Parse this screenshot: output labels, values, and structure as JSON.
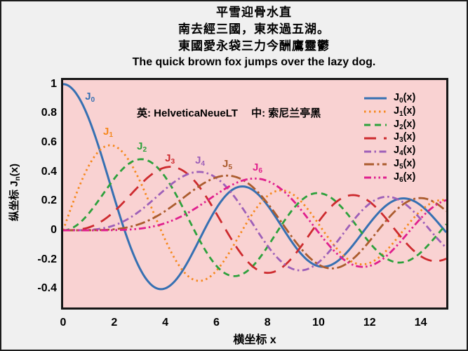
{
  "title_block": {
    "lines": [
      "平雪迎骨水直",
      "南去經三國，東來過五湖。",
      "東國愛永袋三力今酬鷹靈鬱",
      "The quick brown fox jumps over the lazy dog."
    ]
  },
  "annotation": {
    "text": "英: HelveticaNeueLT　 中: 索尼兰亭黑"
  },
  "chart_data": {
    "type": "line",
    "title": "平雪迎骨水直 / 南去經三國，東來過五湖。/ 東國愛永袋三力今酬鷹靈鬱 / The quick brown fox jumps over the lazy dog.",
    "xlabel": "横坐标 x",
    "ylabel_prefix": "纵坐标 J",
    "ylabel_sub": "n",
    "ylabel_suffix": "(x)",
    "xlim": [
      0,
      15
    ],
    "ylim": [
      -0.528,
      1.028
    ],
    "xticks": [
      0,
      2,
      4,
      6,
      8,
      10,
      12,
      14
    ],
    "yticks": [
      "1",
      "0.8",
      "0.6",
      "0.4",
      "0.2",
      "0",
      "-0.2",
      "-0.4"
    ],
    "ytick_values": [
      1,
      0.8,
      0.6,
      0.4,
      0.2,
      0,
      -0.2,
      -0.4
    ],
    "grid": false,
    "legend_position": "upper right",
    "plot_bg": "#f9d2d2",
    "outer_bg": "#f0f0f0",
    "sample_x": [
      0,
      1,
      2,
      3,
      4,
      5,
      6,
      7,
      8,
      9,
      10,
      11,
      12,
      13,
      14,
      15
    ],
    "series": [
      {
        "name": "J0(x)",
        "bessel_order": 0,
        "base": "J",
        "sub": "0",
        "suffix": "(x)",
        "color": "#3670b2",
        "dash": "",
        "width": 3.0,
        "label_pos": [
          1.05,
          0.91
        ],
        "sample_y": [
          1,
          0.765,
          0.224,
          -0.26,
          -0.397,
          -0.178,
          0.151,
          0.3,
          0.172,
          -0.09,
          -0.246,
          -0.171,
          0.048,
          0.207,
          0.171,
          -0.014
        ]
      },
      {
        "name": "J1(x)",
        "bessel_order": 1,
        "base": "J",
        "sub": "1",
        "suffix": "(x)",
        "color": "#f6881d",
        "dash": "2.5 4.5",
        "width": 2.8,
        "label_pos": [
          1.76,
          0.668
        ],
        "sample_y": [
          0,
          0.44,
          0.577,
          0.339,
          -0.066,
          -0.328,
          -0.277,
          -0.005,
          0.235,
          0.245,
          0.043,
          -0.177,
          -0.223,
          -0.07,
          0.133,
          0.205
        ]
      },
      {
        "name": "J2(x)",
        "bessel_order": 2,
        "base": "J",
        "sub": "2",
        "suffix": "(x)",
        "color": "#2da13c",
        "dash": "9 6",
        "width": 2.8,
        "label_pos": [
          3.08,
          0.567
        ],
        "sample_y": [
          0,
          0.115,
          0.353,
          0.486,
          0.364,
          0.047,
          -0.243,
          -0.301,
          -0.113,
          0.145,
          0.255,
          0.139,
          -0.085,
          -0.218,
          -0.152,
          0.042
        ]
      },
      {
        "name": "J3(x)",
        "bessel_order": 3,
        "base": "J",
        "sub": "3",
        "suffix": "(x)",
        "color": "#cd2a2e",
        "dash": "17 11",
        "width": 2.8,
        "label_pos": [
          4.18,
          0.485
        ],
        "sample_y": [
          0,
          0.02,
          0.129,
          0.309,
          0.43,
          0.365,
          0.115,
          -0.168,
          -0.291,
          -0.181,
          0.058,
          0.227,
          0.195,
          0.003,
          -0.177,
          -0.194
        ]
      },
      {
        "name": "J4(x)",
        "bessel_order": 4,
        "base": "J",
        "sub": "4",
        "suffix": "(x)",
        "color": "#9d5fb8",
        "dash": "10 4.5 2.5 4.5",
        "width": 2.8,
        "label_pos": [
          5.36,
          0.471
        ],
        "sample_y": [
          0,
          0.002,
          0.034,
          0.132,
          0.281,
          0.391,
          0.358,
          0.158,
          -0.105,
          -0.266,
          -0.22,
          -0.015,
          0.182,
          0.219,
          0.076,
          -0.119
        ]
      },
      {
        "name": "J5(x)",
        "bessel_order": 5,
        "base": "J",
        "sub": "5",
        "suffix": "(x)",
        "color": "#ab5c2e",
        "dash": "14 4.5 3 4.5",
        "width": 2.8,
        "label_pos": [
          6.43,
          0.447
        ],
        "sample_y": [
          0,
          0,
          0.007,
          0.043,
          0.132,
          0.261,
          0.362,
          0.348,
          0.186,
          -0.055,
          -0.234,
          -0.238,
          -0.074,
          0.132,
          0.22,
          0.131
        ]
      },
      {
        "name": "J6(x)",
        "bessel_order": 6,
        "base": "J",
        "sub": "6",
        "suffix": "(x)",
        "color": "#e01f8d",
        "dash": "10 4 2.5 4 2.5 4",
        "width": 2.8,
        "label_pos": [
          7.61,
          0.423
        ],
        "sample_y": [
          0,
          0,
          0.001,
          0.011,
          0.049,
          0.131,
          0.246,
          0.339,
          0.338,
          0.204,
          -0.015,
          -0.202,
          -0.244,
          -0.118,
          0.081,
          0.206
        ]
      }
    ]
  }
}
